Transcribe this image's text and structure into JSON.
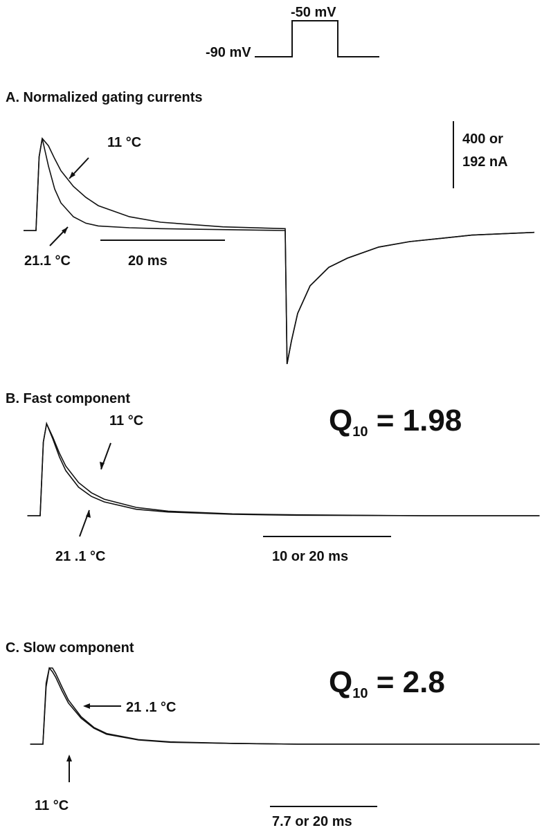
{
  "protocol": {
    "high_label": "-50 mV",
    "low_label": "-90 mV"
  },
  "chart_data": [
    {
      "type": "line",
      "title": "A. Normalized gating currents",
      "scale_bar_y": "400 or",
      "scale_bar_y2": "192 nA",
      "scale_bar_x": "20 ms",
      "series": [
        {
          "name": "11 °C",
          "x": [
            -2,
            0,
            0.5,
            1,
            2,
            3,
            4,
            6,
            8,
            10,
            15,
            20,
            30,
            40,
            40.3,
            41,
            42,
            44,
            47,
            50,
            55,
            60,
            70,
            80
          ],
          "values": [
            0,
            0,
            0.8,
            1,
            0.92,
            0.78,
            0.65,
            0.48,
            0.36,
            0.27,
            0.15,
            0.09,
            0.04,
            0.02,
            -1.45,
            -1.2,
            -0.9,
            -0.6,
            -0.4,
            -0.3,
            -0.18,
            -0.12,
            -0.05,
            -0.02
          ]
        },
        {
          "name": "21.1 °C",
          "x": [
            -2,
            0,
            0.5,
            1,
            2,
            3,
            4,
            6,
            8,
            10,
            15,
            20,
            30,
            40,
            40.3,
            41,
            42,
            44,
            47,
            50,
            55,
            60,
            70,
            80
          ],
          "values": [
            0,
            0,
            0.8,
            1,
            0.7,
            0.45,
            0.3,
            0.15,
            0.08,
            0.05,
            0.03,
            0.02,
            0.01,
            0,
            -1.45,
            -1.2,
            -0.9,
            -0.6,
            -0.4,
            -0.3,
            -0.18,
            -0.12,
            -0.05,
            -0.02
          ]
        }
      ]
    },
    {
      "type": "line",
      "title": "B. Fast component",
      "q_symbol": "Q",
      "q_sub": "10",
      "q_value": " = 1.98",
      "scale_bar_x": "10 or 20 ms",
      "series": [
        {
          "name": "11 °C",
          "x": [
            -2,
            0,
            0.5,
            1,
            2,
            3,
            4,
            6,
            8,
            10,
            15,
            20,
            30,
            40,
            60,
            78
          ],
          "values": [
            0,
            0,
            0.8,
            1,
            0.85,
            0.68,
            0.54,
            0.36,
            0.25,
            0.18,
            0.09,
            0.05,
            0.02,
            0.01,
            0,
            0
          ]
        },
        {
          "name": "21 .1 °C",
          "x": [
            -2,
            0,
            0.5,
            1,
            2,
            3,
            4,
            6,
            8,
            10,
            15,
            20,
            30,
            40,
            60,
            78
          ],
          "values": [
            0,
            0,
            0.8,
            1,
            0.83,
            0.64,
            0.49,
            0.31,
            0.21,
            0.15,
            0.07,
            0.04,
            0.015,
            0.005,
            0,
            0
          ]
        }
      ]
    },
    {
      "type": "line",
      "title": "C. Slow component",
      "q_symbol": "Q",
      "q_sub": "10",
      "q_value": " = 2.8",
      "scale_bar_x": "7.7 or 20 ms",
      "series": [
        {
          "name": "21 .1 °C",
          "x": [
            -2,
            0,
            0.5,
            1,
            1.5,
            2,
            3,
            4,
            6,
            8,
            10,
            15,
            20,
            30,
            40,
            60,
            78
          ],
          "values": [
            0,
            0,
            0.75,
            1,
            1,
            0.93,
            0.75,
            0.58,
            0.36,
            0.22,
            0.14,
            0.06,
            0.03,
            0.01,
            0,
            0,
            0
          ]
        },
        {
          "name": "11 °C",
          "x": [
            -2,
            0,
            0.5,
            1,
            1.5,
            2,
            3,
            4,
            6,
            8,
            10,
            15,
            20,
            30,
            40,
            60,
            78
          ],
          "values": [
            0,
            0,
            0.8,
            1,
            0.95,
            0.88,
            0.7,
            0.54,
            0.34,
            0.21,
            0.13,
            0.055,
            0.025,
            0.01,
            0,
            0,
            0
          ]
        }
      ]
    }
  ]
}
